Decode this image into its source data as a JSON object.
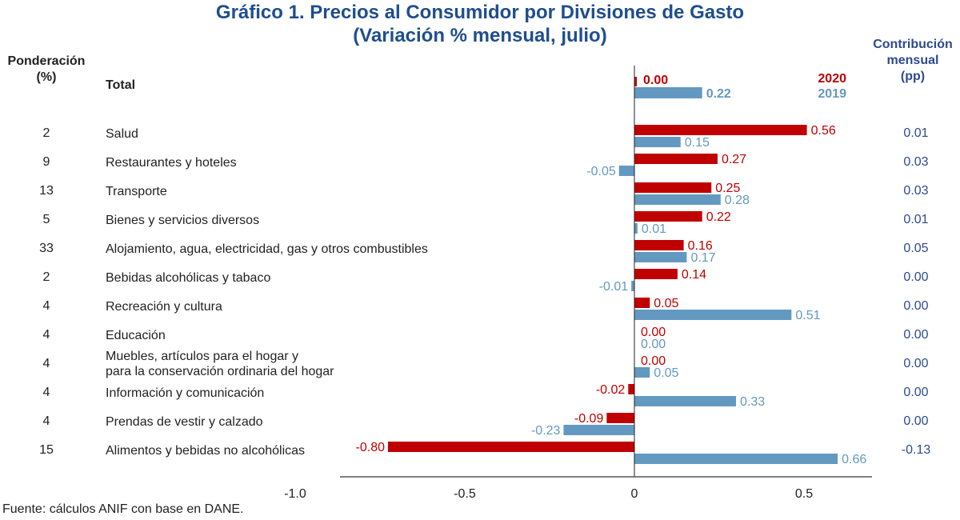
{
  "chart_data": {
    "type": "bar",
    "orientation": "horizontal",
    "title": "Gráfico 1. Precios al Consumidor por Divisiones de Gasto",
    "subtitle": "(Variación % mensual, julio)",
    "xlabel": "",
    "ylabel": "",
    "xlim": [
      -1.0,
      0.7
    ],
    "x_ticks": [
      "-1.0",
      "-0.5",
      "0",
      "0.5"
    ],
    "x_tick_values": [
      -1.0,
      -0.5,
      0,
      0.5
    ],
    "grid": false,
    "legend_position": "top-right",
    "weight_header": "Ponderación\n(%)",
    "contribution_header": "Contribución\nmensual\n(pp)",
    "series": [
      {
        "name": "2020",
        "color": "#c00000"
      },
      {
        "name": "2019",
        "color": "#6399c0"
      }
    ],
    "total": {
      "label": "Total",
      "v2020": 0.0,
      "v2019": 0.22,
      "l2020": "0.00",
      "l2019": "0.22"
    },
    "rows": [
      {
        "weight": "2",
        "label": "Salud",
        "v2020": 0.56,
        "v2019": 0.15,
        "l2020": "0.56",
        "l2019": "0.15",
        "contrib": "0.01"
      },
      {
        "weight": "9",
        "label": "Restaurantes y hoteles",
        "v2020": 0.27,
        "v2019": -0.05,
        "l2020": "0.27",
        "l2019": "-0.05",
        "contrib": "0.03"
      },
      {
        "weight": "13",
        "label": "Transporte",
        "v2020": 0.25,
        "v2019": 0.28,
        "l2020": "0.25",
        "l2019": "0.28",
        "contrib": "0.03"
      },
      {
        "weight": "5",
        "label": "Bienes y servicios diversos",
        "v2020": 0.22,
        "v2019": 0.01,
        "l2020": "0.22",
        "l2019": "0.01",
        "contrib": "0.01"
      },
      {
        "weight": "33",
        "label": "Alojamiento, agua, electricidad, gas y otros combustibles",
        "v2020": 0.16,
        "v2019": 0.17,
        "l2020": "0.16",
        "l2019": "0.17",
        "contrib": "0.05"
      },
      {
        "weight": "2",
        "label": "Bebidas alcohólicas y tabaco",
        "v2020": 0.14,
        "v2019": -0.01,
        "l2020": "0.14",
        "l2019": "-0.01",
        "contrib": "0.00"
      },
      {
        "weight": "4",
        "label": "Recreación y cultura",
        "v2020": 0.05,
        "v2019": 0.51,
        "l2020": "0.05",
        "l2019": "0.51",
        "contrib": "0.00"
      },
      {
        "weight": "4",
        "label": "Educación",
        "v2020": 0.0,
        "v2019": 0.0,
        "l2020": "0.00",
        "l2019": "0.00",
        "contrib": "0.00"
      },
      {
        "weight": "4",
        "label": "Muebles, artículos para el hogar y\npara la conservación ordinaria del hogar",
        "v2020": 0.0,
        "v2019": 0.05,
        "l2020": "0.00",
        "l2019": "0.05",
        "contrib": "0.00"
      },
      {
        "weight": "4",
        "label": "Información y comunicación",
        "v2020": -0.02,
        "v2019": 0.33,
        "l2020": "-0.02",
        "l2019": "0.33",
        "contrib": "0.00"
      },
      {
        "weight": "4",
        "label": "Prendas de vestir y calzado",
        "v2020": -0.09,
        "v2019": -0.23,
        "l2020": "-0.09",
        "l2019": "-0.23",
        "contrib": "0.00"
      },
      {
        "weight": "15",
        "label": "Alimentos y bebidas no alcohólicas",
        "v2020": -0.8,
        "v2019": 0.66,
        "l2020": "-0.80",
        "l2019": "0.66",
        "contrib": "-0.13"
      }
    ]
  },
  "source": "Fuente: cálculos ANIF con base en DANE."
}
